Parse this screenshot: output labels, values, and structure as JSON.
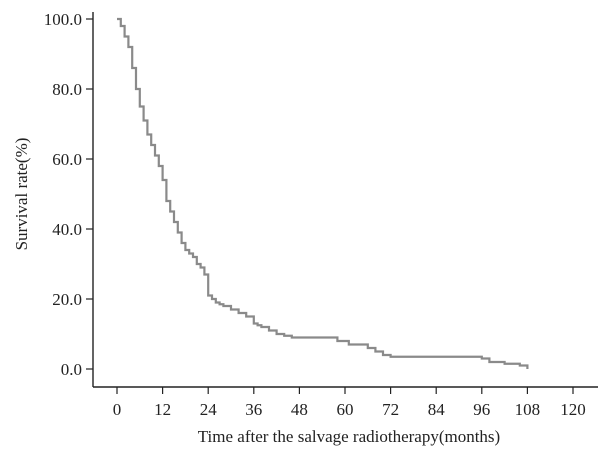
{
  "chart_data": {
    "type": "line",
    "step": true,
    "xlabel": "Time after the salvage radiotherapy(months)",
    "ylabel": "Survival rate(%)",
    "xlim": [
      0,
      120
    ],
    "ylim": [
      0,
      100
    ],
    "x_ticks": [
      0,
      12,
      24,
      36,
      48,
      60,
      72,
      84,
      96,
      108,
      120
    ],
    "x_tick_labels": [
      "0",
      "12",
      "24",
      "36",
      "48",
      "60",
      "72",
      "84",
      "96",
      "108",
      "120"
    ],
    "y_ticks": [
      0,
      20,
      40,
      60,
      80,
      100
    ],
    "y_tick_labels": [
      "0.0",
      "20.0",
      "40.0",
      "60.0",
      "80.0",
      "100.0"
    ],
    "grid": false,
    "series_color": "#8a8a8a",
    "series": [
      {
        "x": [
          0,
          1,
          2,
          3,
          4,
          5,
          6,
          7,
          8,
          9,
          10,
          11,
          12,
          13,
          14,
          15,
          16,
          17,
          18,
          19,
          20,
          21,
          22,
          23,
          24,
          25,
          26,
          27,
          28,
          30,
          32,
          34,
          36,
          37,
          38,
          40,
          42,
          44,
          46,
          58,
          61,
          66,
          68,
          70,
          72,
          96,
          98,
          102,
          106,
          108
        ],
        "y": [
          100,
          98,
          95,
          92,
          86,
          80,
          75,
          71,
          67,
          64,
          61,
          58,
          54,
          48,
          45,
          42,
          39,
          36,
          34,
          33,
          32,
          30,
          29,
          27,
          21,
          20,
          19,
          18.5,
          18,
          17,
          16,
          15,
          13,
          12.5,
          12,
          11,
          10,
          9.5,
          9,
          8,
          7,
          6,
          5,
          4,
          3.5,
          3,
          2,
          1.5,
          1,
          0
        ]
      }
    ]
  }
}
